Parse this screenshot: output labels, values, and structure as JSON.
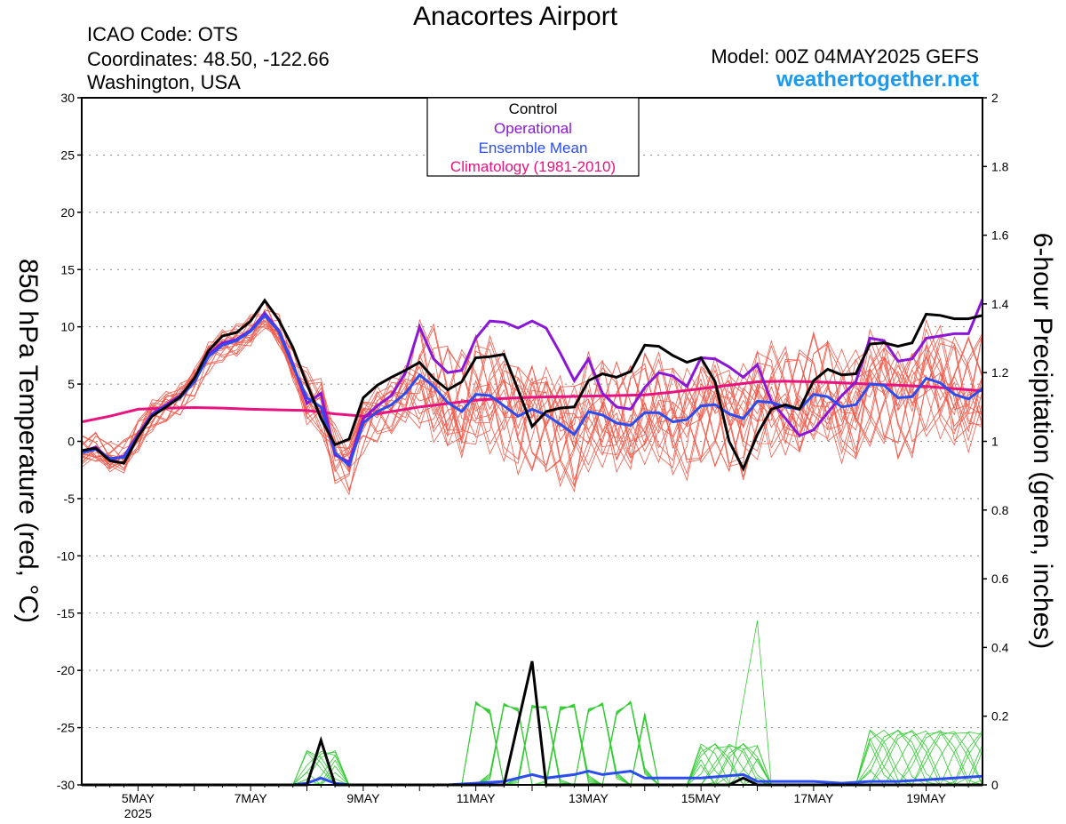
{
  "header": {
    "title": "Anacortes Airport",
    "icao": "ICAO Code: OTS",
    "coords": "Coordinates: 48.50, -122.66",
    "location": "Washington, USA",
    "model": "Model: 00Z 04MAY2025 GEFS",
    "site": "weathertogether.net"
  },
  "chart_data": {
    "type": "line",
    "ylabel_left": "850 hPa Temperature (red, °C)",
    "ylabel_right": "6-hour Precipitation (green, inches)",
    "y_left_range": [
      -30,
      30
    ],
    "y_left_ticks": [
      "30",
      "25",
      "20",
      "15",
      "10",
      "5",
      "0",
      "-5",
      "-10",
      "-15",
      "-20",
      "-25",
      "-30"
    ],
    "y_right_range": [
      0,
      2
    ],
    "y_right_ticks": [
      "2",
      "1.8",
      "1.6",
      "1.4",
      "1.2",
      "1",
      "0.8",
      "0.6",
      "0.4",
      "0.2",
      "0"
    ],
    "x_range": [
      4.0,
      20.0
    ],
    "x_ticks": [
      {
        "day": 5,
        "label": "5MAY",
        "sub": "2025"
      },
      {
        "day": 7,
        "label": "7MAY"
      },
      {
        "day": 9,
        "label": "9MAY"
      },
      {
        "day": 11,
        "label": "11MAY"
      },
      {
        "day": 13,
        "label": "13MAY"
      },
      {
        "day": 15,
        "label": "15MAY"
      },
      {
        "day": 17,
        "label": "17MAY"
      },
      {
        "day": 19,
        "label": "19MAY"
      }
    ],
    "legend": {
      "placement": "top-center",
      "entries": [
        {
          "label": "Control",
          "color": "#000000"
        },
        {
          "label": "Operational",
          "color": "#8a16d8"
        },
        {
          "label": "Ensemble Mean",
          "color": "#2b4cf0"
        },
        {
          "label": "Climatology (1981-2010)",
          "color": "#e8137e"
        }
      ]
    },
    "colors": {
      "ensemble_members_temp": "#f25a4a",
      "ensemble_members_precip": "#33cc33",
      "control": "#000000",
      "operational": "#8a16d8",
      "mean": "#2b4cf0",
      "climatology": "#e8137e"
    },
    "series_temp": {
      "control": [
        [
          4.0,
          -0.8
        ],
        [
          4.25,
          -0.6
        ],
        [
          4.5,
          -1.7
        ],
        [
          4.75,
          -1.9
        ],
        [
          5.0,
          0.4
        ],
        [
          5.25,
          2.2
        ],
        [
          5.5,
          3.0
        ],
        [
          5.75,
          3.9
        ],
        [
          6.0,
          5.5
        ],
        [
          6.25,
          7.9
        ],
        [
          6.5,
          9.2
        ],
        [
          6.75,
          9.5
        ],
        [
          7.0,
          10.5
        ],
        [
          7.25,
          12.3
        ],
        [
          7.5,
          10.6
        ],
        [
          7.75,
          8.2
        ],
        [
          8.0,
          5.0
        ],
        [
          8.25,
          2.0
        ],
        [
          8.5,
          -0.3
        ],
        [
          8.75,
          0.2
        ],
        [
          9.0,
          3.8
        ],
        [
          9.25,
          4.9
        ],
        [
          9.5,
          5.6
        ],
        [
          9.75,
          6.2
        ],
        [
          10.0,
          6.9
        ],
        [
          10.25,
          5.5
        ],
        [
          10.5,
          4.5
        ],
        [
          10.75,
          5.2
        ],
        [
          11.0,
          7.3
        ],
        [
          11.25,
          7.4
        ],
        [
          11.5,
          7.6
        ],
        [
          11.75,
          4.5
        ],
        [
          12.0,
          1.3
        ],
        [
          12.25,
          2.6
        ],
        [
          12.5,
          2.9
        ],
        [
          12.75,
          3.0
        ],
        [
          13.0,
          5.3
        ],
        [
          13.25,
          5.9
        ],
        [
          13.5,
          5.6
        ],
        [
          13.75,
          6.1
        ],
        [
          14.0,
          8.4
        ],
        [
          14.25,
          8.3
        ],
        [
          14.5,
          7.5
        ],
        [
          14.75,
          6.9
        ],
        [
          15.0,
          7.3
        ],
        [
          15.25,
          5.2
        ],
        [
          15.5,
          0.0
        ],
        [
          15.75,
          -2.4
        ],
        [
          16.0,
          0.6
        ],
        [
          16.25,
          2.8
        ],
        [
          16.5,
          3.2
        ],
        [
          16.75,
          2.8
        ],
        [
          17.0,
          5.3
        ],
        [
          17.25,
          6.3
        ],
        [
          17.5,
          5.8
        ],
        [
          17.75,
          5.9
        ],
        [
          18.0,
          8.5
        ],
        [
          18.25,
          8.6
        ],
        [
          18.5,
          8.3
        ],
        [
          18.75,
          8.6
        ],
        [
          19.0,
          11.1
        ],
        [
          19.25,
          11.0
        ],
        [
          19.5,
          10.7
        ],
        [
          19.75,
          10.7
        ],
        [
          20.0,
          11.0
        ]
      ],
      "operational": [
        [
          4.0,
          -0.9
        ],
        [
          4.25,
          -0.5
        ],
        [
          4.5,
          -1.6
        ],
        [
          4.75,
          -1.3
        ],
        [
          5.0,
          0.6
        ],
        [
          5.25,
          2.4
        ],
        [
          5.5,
          3.2
        ],
        [
          5.75,
          4.0
        ],
        [
          6.0,
          5.4
        ],
        [
          6.25,
          7.6
        ],
        [
          6.5,
          8.6
        ],
        [
          6.75,
          8.9
        ],
        [
          7.0,
          9.7
        ],
        [
          7.25,
          11.2
        ],
        [
          7.5,
          9.7
        ],
        [
          7.75,
          6.8
        ],
        [
          8.0,
          3.3
        ],
        [
          8.25,
          4.2
        ],
        [
          8.5,
          -1.2
        ],
        [
          8.75,
          -1.8
        ],
        [
          9.0,
          2.0
        ],
        [
          9.25,
          3.1
        ],
        [
          9.5,
          4.0
        ],
        [
          9.75,
          6.0
        ],
        [
          10.0,
          10.0
        ],
        [
          10.25,
          7.2
        ],
        [
          10.5,
          6.0
        ],
        [
          10.75,
          6.2
        ],
        [
          11.0,
          9.0
        ],
        [
          11.25,
          10.5
        ],
        [
          11.5,
          10.4
        ],
        [
          11.75,
          9.9
        ],
        [
          12.0,
          10.5
        ],
        [
          12.25,
          9.9
        ],
        [
          12.5,
          7.7
        ],
        [
          12.75,
          5.3
        ],
        [
          13.0,
          7.2
        ],
        [
          13.25,
          4.2
        ],
        [
          13.5,
          3.0
        ],
        [
          13.75,
          2.8
        ],
        [
          14.0,
          4.7
        ],
        [
          14.25,
          6.0
        ],
        [
          14.5,
          5.7
        ],
        [
          14.75,
          4.8
        ],
        [
          15.0,
          7.3
        ],
        [
          15.25,
          7.2
        ],
        [
          15.5,
          6.5
        ],
        [
          15.75,
          5.6
        ],
        [
          16.0,
          6.7
        ],
        [
          16.25,
          3.5
        ],
        [
          16.5,
          2.0
        ],
        [
          16.75,
          0.5
        ],
        [
          17.0,
          1.0
        ],
        [
          17.25,
          2.5
        ],
        [
          17.5,
          4.0
        ],
        [
          17.75,
          5.2
        ],
        [
          18.0,
          9.0
        ],
        [
          18.25,
          8.8
        ],
        [
          18.5,
          7.0
        ],
        [
          18.75,
          7.2
        ],
        [
          19.0,
          9.0
        ],
        [
          19.25,
          9.2
        ],
        [
          19.5,
          9.4
        ],
        [
          19.75,
          9.4
        ],
        [
          20.0,
          12.4
        ]
      ],
      "mean": [
        [
          4.0,
          -1.0
        ],
        [
          4.25,
          -0.7
        ],
        [
          4.5,
          -1.5
        ],
        [
          4.75,
          -1.4
        ],
        [
          5.0,
          0.5
        ],
        [
          5.25,
          2.3
        ],
        [
          5.5,
          3.1
        ],
        [
          5.75,
          3.8
        ],
        [
          6.0,
          5.2
        ],
        [
          6.25,
          7.4
        ],
        [
          6.5,
          8.4
        ],
        [
          6.75,
          8.8
        ],
        [
          7.0,
          9.6
        ],
        [
          7.25,
          11.0
        ],
        [
          7.5,
          9.6
        ],
        [
          7.75,
          6.6
        ],
        [
          8.0,
          3.8
        ],
        [
          8.25,
          3.0
        ],
        [
          8.5,
          -1.0
        ],
        [
          8.75,
          -2.1
        ],
        [
          9.0,
          1.6
        ],
        [
          9.25,
          2.6
        ],
        [
          9.5,
          3.2
        ],
        [
          9.75,
          4.2
        ],
        [
          10.0,
          5.8
        ],
        [
          10.25,
          4.8
        ],
        [
          10.5,
          3.4
        ],
        [
          10.75,
          2.6
        ],
        [
          11.0,
          4.1
        ],
        [
          11.25,
          4.0
        ],
        [
          11.5,
          3.1
        ],
        [
          11.75,
          2.2
        ],
        [
          12.0,
          2.8
        ],
        [
          12.25,
          2.3
        ],
        [
          12.5,
          1.5
        ],
        [
          12.75,
          0.6
        ],
        [
          13.0,
          2.6
        ],
        [
          13.25,
          2.3
        ],
        [
          13.5,
          1.6
        ],
        [
          13.75,
          1.4
        ],
        [
          14.0,
          2.5
        ],
        [
          14.25,
          2.5
        ],
        [
          14.5,
          1.7
        ],
        [
          14.75,
          1.9
        ],
        [
          15.0,
          3.1
        ],
        [
          15.25,
          3.2
        ],
        [
          15.5,
          2.4
        ],
        [
          15.75,
          2.0
        ],
        [
          16.0,
          3.5
        ],
        [
          16.25,
          3.4
        ],
        [
          16.5,
          3.0
        ],
        [
          16.75,
          2.8
        ],
        [
          17.0,
          4.1
        ],
        [
          17.25,
          3.9
        ],
        [
          17.5,
          3.0
        ],
        [
          17.75,
          3.2
        ],
        [
          18.0,
          5.0
        ],
        [
          18.25,
          4.9
        ],
        [
          18.5,
          3.8
        ],
        [
          18.75,
          3.9
        ],
        [
          19.0,
          5.5
        ],
        [
          19.25,
          5.1
        ],
        [
          19.5,
          4.1
        ],
        [
          19.75,
          3.7
        ],
        [
          20.0,
          4.6
        ]
      ],
      "climatology": [
        [
          4.0,
          1.7
        ],
        [
          4.5,
          2.2
        ],
        [
          5.0,
          2.8
        ],
        [
          5.5,
          2.9
        ],
        [
          6.0,
          2.95
        ],
        [
          6.5,
          2.9
        ],
        [
          7.0,
          2.8
        ],
        [
          7.5,
          2.75
        ],
        [
          8.0,
          2.7
        ],
        [
          8.5,
          2.4
        ],
        [
          9.0,
          2.2
        ],
        [
          9.5,
          2.6
        ],
        [
          10.0,
          3.0
        ],
        [
          10.5,
          3.3
        ],
        [
          11.0,
          3.6
        ],
        [
          11.5,
          3.75
        ],
        [
          12.0,
          3.85
        ],
        [
          12.5,
          3.9
        ],
        [
          13.0,
          3.95
        ],
        [
          13.5,
          4.0
        ],
        [
          14.0,
          4.05
        ],
        [
          14.5,
          4.3
        ],
        [
          15.0,
          4.6
        ],
        [
          15.5,
          4.9
        ],
        [
          16.0,
          5.2
        ],
        [
          16.5,
          5.25
        ],
        [
          17.0,
          5.2
        ],
        [
          17.5,
          5.1
        ],
        [
          18.0,
          5.0
        ],
        [
          18.5,
          4.9
        ],
        [
          19.0,
          4.8
        ],
        [
          19.5,
          4.6
        ],
        [
          20.0,
          4.4
        ]
      ]
    },
    "series_precip": {
      "control": [
        [
          4.0,
          0
        ],
        [
          8.0,
          0
        ],
        [
          8.25,
          0.13
        ],
        [
          8.5,
          0
        ],
        [
          11.5,
          0
        ],
        [
          12.0,
          0.36
        ],
        [
          12.25,
          0
        ],
        [
          15.5,
          0
        ],
        [
          15.75,
          0.02
        ],
        [
          16.0,
          0
        ],
        [
          20.0,
          0
        ]
      ],
      "mean": [
        [
          4.0,
          0
        ],
        [
          7.75,
          0
        ],
        [
          8.0,
          0.005
        ],
        [
          8.25,
          0.02
        ],
        [
          8.5,
          0.005
        ],
        [
          8.75,
          0
        ],
        [
          10.5,
          0
        ],
        [
          11.0,
          0.005
        ],
        [
          11.5,
          0.01
        ],
        [
          12.0,
          0.03
        ],
        [
          12.25,
          0.02
        ],
        [
          12.75,
          0.03
        ],
        [
          13.0,
          0.04
        ],
        [
          13.25,
          0.03
        ],
        [
          13.75,
          0.04
        ],
        [
          14.0,
          0.02
        ],
        [
          14.5,
          0.02
        ],
        [
          15.0,
          0.02
        ],
        [
          15.75,
          0.03
        ],
        [
          16.0,
          0.01
        ],
        [
          17.0,
          0.01
        ],
        [
          17.5,
          0.005
        ],
        [
          18.0,
          0.01
        ],
        [
          18.5,
          0.01
        ],
        [
          19.0,
          0.015
        ],
        [
          19.5,
          0.02
        ],
        [
          20.0,
          0.025
        ]
      ]
    }
  }
}
